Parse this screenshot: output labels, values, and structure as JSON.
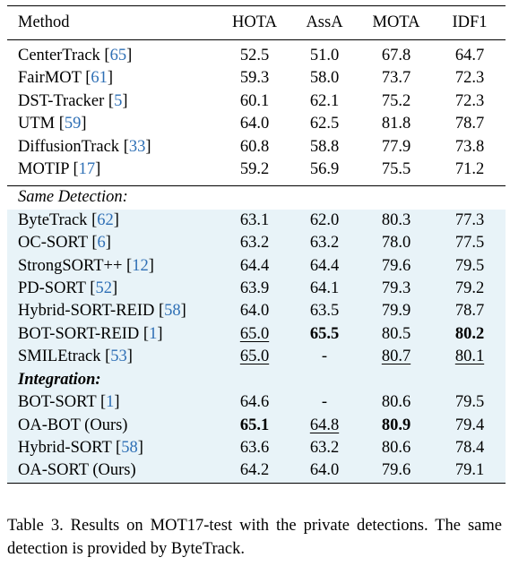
{
  "table": {
    "headers": [
      "Method",
      "HOTA",
      "AssA",
      "MOTA",
      "IDF1"
    ],
    "group1": [
      {
        "name": "CenterTrack",
        "ref": "65",
        "hota": "52.5",
        "assa": "51.0",
        "mota": "67.8",
        "idf1": "64.7"
      },
      {
        "name": "FairMOT",
        "ref": "61",
        "hota": "59.3",
        "assa": "58.0",
        "mota": "73.7",
        "idf1": "72.3"
      },
      {
        "name": "DST-Tracker",
        "ref": "5",
        "hota": "60.1",
        "assa": "62.1",
        "mota": "75.2",
        "idf1": "72.3"
      },
      {
        "name": "UTM",
        "ref": "59",
        "hota": "64.0",
        "assa": "62.5",
        "mota": "81.8",
        "idf1": "78.7"
      },
      {
        "name": "DiffusionTrack",
        "ref": "33",
        "hota": "60.8",
        "assa": "58.8",
        "mota": "77.9",
        "idf1": "73.8"
      },
      {
        "name": "MOTIP",
        "ref": "17",
        "hota": "59.2",
        "assa": "56.9",
        "mota": "75.5",
        "idf1": "71.2"
      }
    ],
    "section_same_detection": "Same Detection:",
    "group2": [
      {
        "name": "ByteTrack",
        "ref": "62",
        "hota": "63.1",
        "assa": "62.0",
        "mota": "80.3",
        "idf1": "77.3"
      },
      {
        "name": "OC-SORT",
        "ref": "6",
        "hota": "63.2",
        "assa": "63.2",
        "mota": "78.0",
        "idf1": "77.5"
      },
      {
        "name": "StrongSORT++",
        "ref": "12",
        "hota": "64.4",
        "assa": "64.4",
        "mota": "79.6",
        "idf1": "79.5"
      },
      {
        "name": "PD-SORT",
        "ref": "52",
        "hota": "63.9",
        "assa": "64.1",
        "mota": "79.3",
        "idf1": "79.2"
      },
      {
        "name": "Hybrid-SORT-REID",
        "ref": "58",
        "hota": "64.0",
        "assa": "63.5",
        "mota": "79.9",
        "idf1": "78.7"
      },
      {
        "name": "BOT-SORT-REID",
        "ref": "1",
        "hota": "65.0",
        "assa": "65.5",
        "mota": "80.5",
        "idf1": "80.2"
      },
      {
        "name": "SMILEtrack",
        "ref": "53",
        "hota": "65.0",
        "assa": "-",
        "mota": "80.7",
        "idf1": "80.1"
      }
    ],
    "section_integration": "Integration:",
    "group3": [
      {
        "name": "BOT-SORT",
        "ref": "1",
        "suffix": "",
        "hota": "64.6",
        "assa": "-",
        "mota": "80.6",
        "idf1": "79.5"
      },
      {
        "name": "OA-BOT (Ours)",
        "ref": "",
        "suffix": "",
        "hota": "65.1",
        "assa": "64.8",
        "mota": "80.9",
        "idf1": "79.4"
      },
      {
        "name": "Hybrid-SORT",
        "ref": "58",
        "suffix": "",
        "hota": "63.6",
        "assa": "63.2",
        "mota": "80.6",
        "idf1": "78.4"
      },
      {
        "name": "OA-SORT (Ours)",
        "ref": "",
        "suffix": "",
        "hota": "64.2",
        "assa": "64.0",
        "mota": "79.6",
        "idf1": "79.1"
      }
    ]
  },
  "caption": "Table 3. Results on MOT17-test with the private detections. The same detection is provided by ByteTrack.",
  "colors": {
    "shade": "#e8f3f8",
    "ref_link": "#2e6fb5"
  }
}
